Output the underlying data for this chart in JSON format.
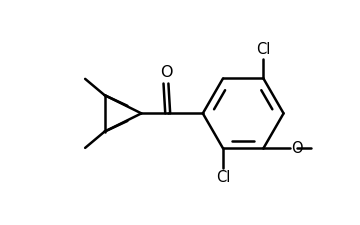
{
  "bg_color": "#ffffff",
  "line_color": "#000000",
  "line_width": 1.8,
  "font_size": 10.5,
  "fig_width": 3.6,
  "fig_height": 2.25,
  "dpi": 100,
  "xlim": [
    0,
    10
  ],
  "ylim": [
    0,
    6.25
  ]
}
